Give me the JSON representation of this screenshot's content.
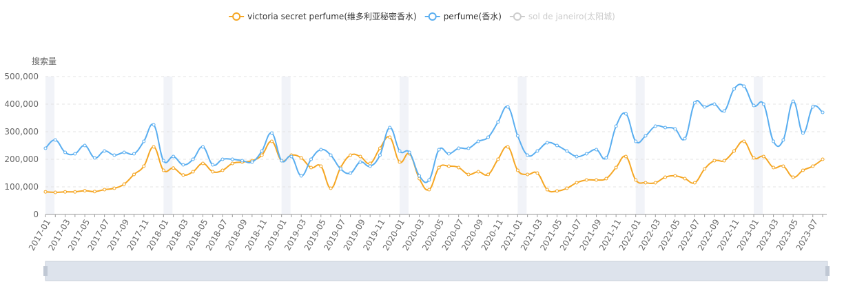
{
  "chart_data": {
    "type": "line",
    "y_axis_title": "搜索量",
    "categories": [
      "2017-01",
      null,
      "2017-03",
      null,
      "2017-05",
      null,
      "2017-07",
      null,
      "2017-09",
      null,
      "2017-11",
      null,
      "2018-01",
      null,
      "2018-03",
      null,
      "2018-05",
      null,
      "2018-07",
      null,
      "2018-09",
      null,
      "2018-11",
      null,
      "2019-01",
      null,
      "2019-03",
      null,
      "2019-05",
      null,
      "2019-07",
      null,
      "2019-09",
      null,
      "2019-11",
      null,
      "2020-01",
      null,
      "2020-03",
      null,
      "2020-05",
      null,
      "2020-07",
      null,
      "2020-09",
      null,
      "2020-11",
      null,
      "2021-01",
      null,
      "2021-03",
      null,
      "2021-05",
      null,
      "2021-07",
      null,
      "2021-09",
      null,
      "2021-11",
      null,
      "2022-01",
      null,
      "2022-03",
      null,
      "2022-05",
      null,
      "2022-07",
      null,
      "2022-09",
      null,
      "2022-11",
      null,
      "2023-01",
      null,
      "2023-03",
      null,
      "2023-05",
      null,
      "2023-07",
      null
    ],
    "series": [
      {
        "name": "victoria secret perfume(维多利亚秘密香水)",
        "color": "#f5a623",
        "values": [
          82000,
          80000,
          82000,
          82000,
          86000,
          83000,
          90000,
          95000,
          110000,
          145000,
          175000,
          245000,
          160000,
          168000,
          143000,
          155000,
          185000,
          155000,
          160000,
          185000,
          190000,
          195000,
          215000,
          265000,
          195000,
          215000,
          205000,
          170000,
          175000,
          95000,
          170000,
          215000,
          210000,
          185000,
          240000,
          280000,
          190000,
          220000,
          130000,
          90000,
          170000,
          175000,
          170000,
          145000,
          155000,
          145000,
          200000,
          245000,
          160000,
          145000,
          150000,
          90000,
          85000,
          95000,
          115000,
          125000,
          125000,
          130000,
          170000,
          210000,
          125000,
          115000,
          115000,
          135000,
          140000,
          130000,
          115000,
          165000,
          195000,
          195000,
          230000,
          265000,
          205000,
          210000,
          170000,
          175000,
          135000,
          160000,
          175000,
          200000
        ]
      },
      {
        "name": "perfume(香水)",
        "color": "#5aaef0",
        "values": [
          240000,
          270000,
          225000,
          220000,
          250000,
          205000,
          230000,
          215000,
          225000,
          220000,
          265000,
          325000,
          195000,
          210000,
          180000,
          200000,
          245000,
          180000,
          200000,
          200000,
          195000,
          190000,
          230000,
          295000,
          195000,
          210000,
          140000,
          200000,
          235000,
          215000,
          165000,
          150000,
          190000,
          175000,
          215000,
          315000,
          230000,
          225000,
          140000,
          125000,
          235000,
          220000,
          240000,
          240000,
          265000,
          280000,
          335000,
          390000,
          285000,
          215000,
          230000,
          260000,
          250000,
          230000,
          210000,
          220000,
          235000,
          205000,
          320000,
          365000,
          265000,
          285000,
          320000,
          315000,
          310000,
          275000,
          405000,
          390000,
          400000,
          375000,
          455000,
          465000,
          395000,
          400000,
          265000,
          270000,
          410000,
          295000,
          390000,
          370000
        ]
      }
    ],
    "hidden_series": [
      {
        "name": "sol de janeiro(太阳城)",
        "color": "#cccccc"
      }
    ],
    "ylim": [
      0,
      500000
    ],
    "yticks": [
      0,
      {
        "value": 100000,
        "label": "100,000"
      },
      {
        "value": 200000,
        "label": "200,000"
      },
      {
        "value": 300000,
        "label": "300,000"
      },
      {
        "value": 400000,
        "label": "400,000"
      },
      {
        "value": 500000,
        "label": "500,000"
      }
    ],
    "grid": true
  }
}
